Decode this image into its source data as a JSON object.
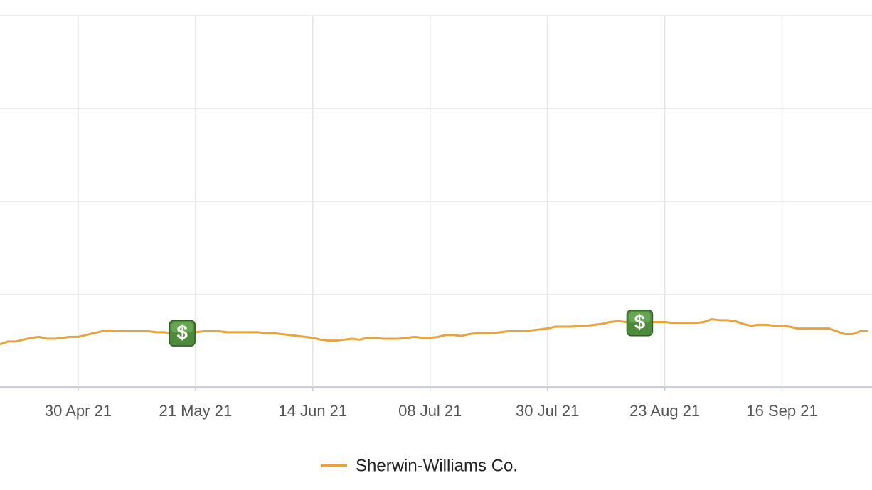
{
  "chart_data": {
    "type": "line",
    "x": [
      0,
      1,
      2,
      3,
      4,
      5,
      6,
      7,
      8,
      9,
      10,
      11,
      12,
      13,
      14,
      15,
      16,
      17,
      18,
      19,
      20,
      21,
      22,
      23,
      24,
      25,
      26,
      27,
      28,
      29,
      30,
      31,
      32,
      33,
      34,
      35,
      36,
      37,
      38,
      39,
      40,
      41,
      42,
      43,
      44,
      45,
      46,
      47,
      48,
      49,
      50,
      51,
      52,
      53,
      54,
      55,
      56,
      57,
      58,
      59,
      60,
      61,
      62,
      63,
      64,
      65,
      66,
      67,
      68,
      69,
      70,
      71,
      72,
      73,
      74,
      75,
      76,
      77,
      78,
      79,
      80,
      81,
      82,
      83,
      84,
      85,
      86,
      87,
      88,
      89,
      90,
      91,
      92,
      93,
      94,
      95,
      96,
      97,
      98,
      99,
      100,
      101,
      102,
      103,
      104,
      105,
      106,
      107,
      108,
      109,
      110,
      111
    ],
    "series": [
      {
        "name": "Sherwin-Williams Co.",
        "color": "#e8a33d",
        "values": [
          0.46,
          0.49,
          0.49,
          0.51,
          0.53,
          0.54,
          0.52,
          0.52,
          0.53,
          0.54,
          0.54,
          0.56,
          0.58,
          0.6,
          0.61,
          0.6,
          0.6,
          0.6,
          0.6,
          0.6,
          0.59,
          0.59,
          0.58,
          0.58,
          0.58,
          0.59,
          0.6,
          0.6,
          0.6,
          0.59,
          0.59,
          0.59,
          0.59,
          0.59,
          0.58,
          0.58,
          0.57,
          0.56,
          0.55,
          0.54,
          0.53,
          0.51,
          0.5,
          0.5,
          0.51,
          0.52,
          0.51,
          0.53,
          0.53,
          0.52,
          0.52,
          0.52,
          0.53,
          0.54,
          0.53,
          0.53,
          0.54,
          0.56,
          0.56,
          0.55,
          0.57,
          0.58,
          0.58,
          0.58,
          0.59,
          0.6,
          0.6,
          0.6,
          0.61,
          0.62,
          0.63,
          0.65,
          0.65,
          0.65,
          0.66,
          0.66,
          0.67,
          0.68,
          0.7,
          0.71,
          0.7,
          0.7,
          0.71,
          0.7,
          0.7,
          0.7,
          0.69,
          0.69,
          0.69,
          0.69,
          0.7,
          0.73,
          0.72,
          0.72,
          0.71,
          0.68,
          0.66,
          0.67,
          0.67,
          0.66,
          0.66,
          0.65,
          0.63,
          0.63,
          0.63,
          0.63,
          0.63,
          0.6,
          0.57,
          0.57,
          0.6,
          0.6
        ]
      }
    ],
    "events": {
      "label": "$",
      "x": [
        23.3,
        81.8
      ],
      "y": [
        0.58,
        0.69
      ]
    },
    "xlim": [
      0,
      111.5
    ],
    "xticks": [
      {
        "value": 10,
        "label": "30 Apr 21"
      },
      {
        "value": 25,
        "label": "21 May 21"
      },
      {
        "value": 40,
        "label": "14 Jun 21"
      },
      {
        "value": 55,
        "label": "08 Jul 21"
      },
      {
        "value": 70,
        "label": "30 Jul 21"
      },
      {
        "value": 85,
        "label": "23 Aug 21"
      },
      {
        "value": 100,
        "label": "16 Sep 21"
      }
    ],
    "ylim": [
      0,
      4
    ],
    "grid": true
  }
}
